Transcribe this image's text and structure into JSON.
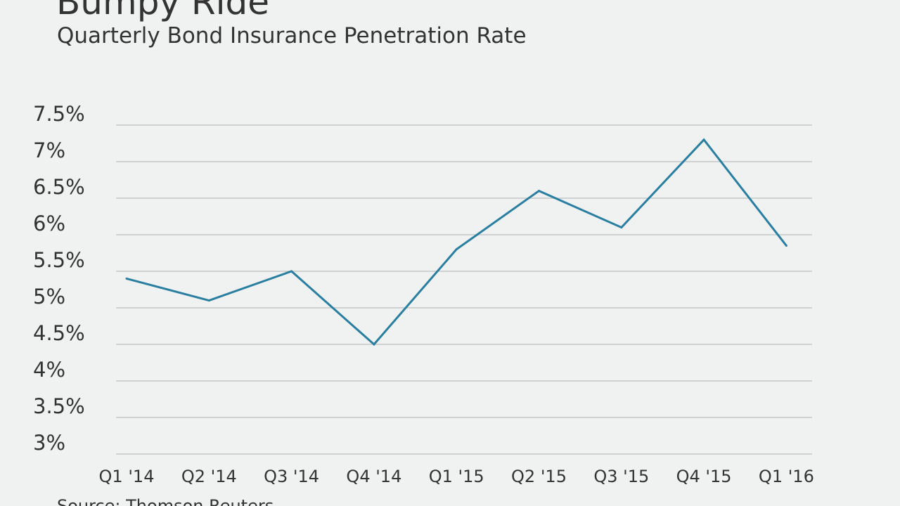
{
  "chart_data": {
    "type": "line",
    "title": "Bumpy Ride",
    "subtitle": "Quarterly Bond Insurance Penetration Rate",
    "source": "Source: Thomson Reuters",
    "xlabel": "",
    "ylabel": "",
    "categories": [
      "Q1 '14",
      "Q2 '14",
      "Q3 '14",
      "Q4 '14",
      "Q1 '15",
      "Q2 '15",
      "Q3 '15",
      "Q4 '15",
      "Q1 '16"
    ],
    "series": [
      {
        "name": "Penetration Rate",
        "values": [
          5.4,
          5.1,
          5.5,
          4.5,
          5.8,
          6.6,
          6.1,
          7.3,
          5.85
        ]
      }
    ],
    "y_ticks": [
      3,
      3.5,
      4,
      4.5,
      5,
      5.5,
      6,
      6.5,
      7,
      7.5
    ],
    "y_tick_labels": [
      "3%",
      "3.5%",
      "4%",
      "4.5%",
      "5%",
      "5.5%",
      "6%",
      "6.5%",
      "7%",
      "7.5%"
    ],
    "ylim": [
      3,
      7.5
    ],
    "grid": true,
    "legend": "none",
    "line_color": "#2a7fa0",
    "grid_color": "#cfd2d2"
  }
}
